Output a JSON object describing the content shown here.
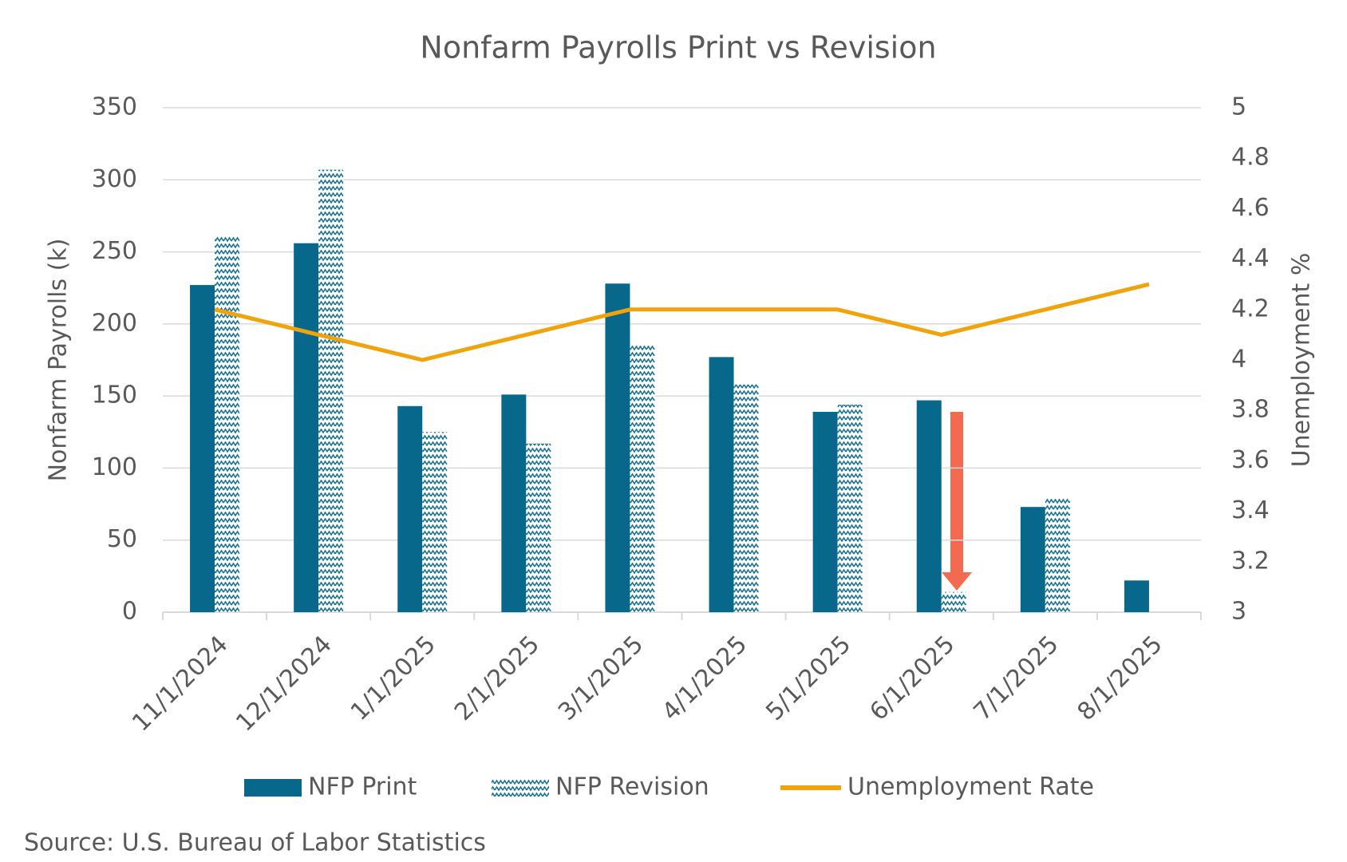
{
  "chart_data": {
    "type": "bar",
    "title": "Nonfarm Payrolls Print vs Revision",
    "categories": [
      "11/1/2024",
      "12/1/2024",
      "1/1/2025",
      "2/1/2025",
      "3/1/2025",
      "4/1/2025",
      "5/1/2025",
      "6/1/2025",
      "7/1/2025",
      "8/1/2025"
    ],
    "series": [
      {
        "name": "NFP Print",
        "color": "#07688c",
        "values": [
          227,
          256,
          143,
          151,
          228,
          177,
          139,
          147,
          73,
          22
        ]
      },
      {
        "name": "NFP Revision",
        "color": "#1a7394",
        "pattern": "zigzag",
        "values": [
          261,
          307,
          125,
          117,
          185,
          158,
          144,
          14,
          79,
          null
        ]
      },
      {
        "name": "Unemployment Rate",
        "color": "#f0a30a",
        "type": "line",
        "axis": "y2",
        "values": [
          4.2,
          4.1,
          4.0,
          4.1,
          4.2,
          4.2,
          4.2,
          4.1,
          4.2,
          4.3
        ]
      }
    ],
    "y_label": "Nonfarm Payrolls (k)",
    "y2_label": "Unemployment %",
    "ylim": [
      0,
      350
    ],
    "yticks": [
      0,
      50,
      100,
      150,
      200,
      250,
      300,
      350
    ],
    "y2lim": [
      3,
      5
    ],
    "y2ticks": [
      3,
      3.2,
      3.4,
      3.6,
      3.8,
      4,
      4.2,
      4.4,
      4.6,
      4.8,
      5
    ],
    "grid": true,
    "legend": "bottom",
    "source": "Source: U.S. Bureau of Labor Statistics"
  }
}
